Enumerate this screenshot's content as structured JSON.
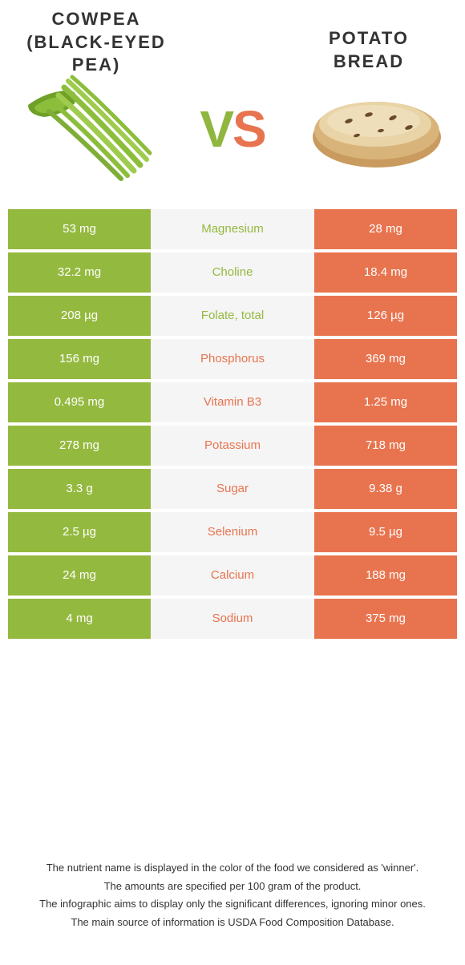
{
  "colors": {
    "left": "#94b93f",
    "right": "#e8744f",
    "mid_bg": "#f5f5f5",
    "text_dark": "#333333"
  },
  "food_left": {
    "title_line1": "COWPEA",
    "title_line2": "(BLACK-EYED",
    "title_line3": "PEA)"
  },
  "food_right": {
    "title_line1": "POTATO",
    "title_line2": "BREAD"
  },
  "vs": {
    "v": "V",
    "s": "S"
  },
  "rows": [
    {
      "left": "53 mg",
      "mid": "Magnesium",
      "right": "28 mg",
      "winner": "left"
    },
    {
      "left": "32.2 mg",
      "mid": "Choline",
      "right": "18.4 mg",
      "winner": "left"
    },
    {
      "left": "208 µg",
      "mid": "Folate, total",
      "right": "126 µg",
      "winner": "left"
    },
    {
      "left": "156 mg",
      "mid": "Phosphorus",
      "right": "369 mg",
      "winner": "right"
    },
    {
      "left": "0.495 mg",
      "mid": "Vitamin B3",
      "right": "1.25 mg",
      "winner": "right"
    },
    {
      "left": "278 mg",
      "mid": "Potassium",
      "right": "718 mg",
      "winner": "right"
    },
    {
      "left": "3.3 g",
      "mid": "Sugar",
      "right": "9.38 g",
      "winner": "right"
    },
    {
      "left": "2.5 µg",
      "mid": "Selenium",
      "right": "9.5 µg",
      "winner": "right"
    },
    {
      "left": "24 mg",
      "mid": "Calcium",
      "right": "188 mg",
      "winner": "right"
    },
    {
      "left": "4 mg",
      "mid": "Sodium",
      "right": "375 mg",
      "winner": "right"
    }
  ],
  "footer": {
    "l1": "The nutrient name is displayed in the color of the food we considered as 'winner'.",
    "l2": "The amounts are specified per 100 gram of the product.",
    "l3": "The infographic aims to display only the significant differences, ignoring minor ones.",
    "l4": "The main source of information is USDA Food Composition Database."
  }
}
